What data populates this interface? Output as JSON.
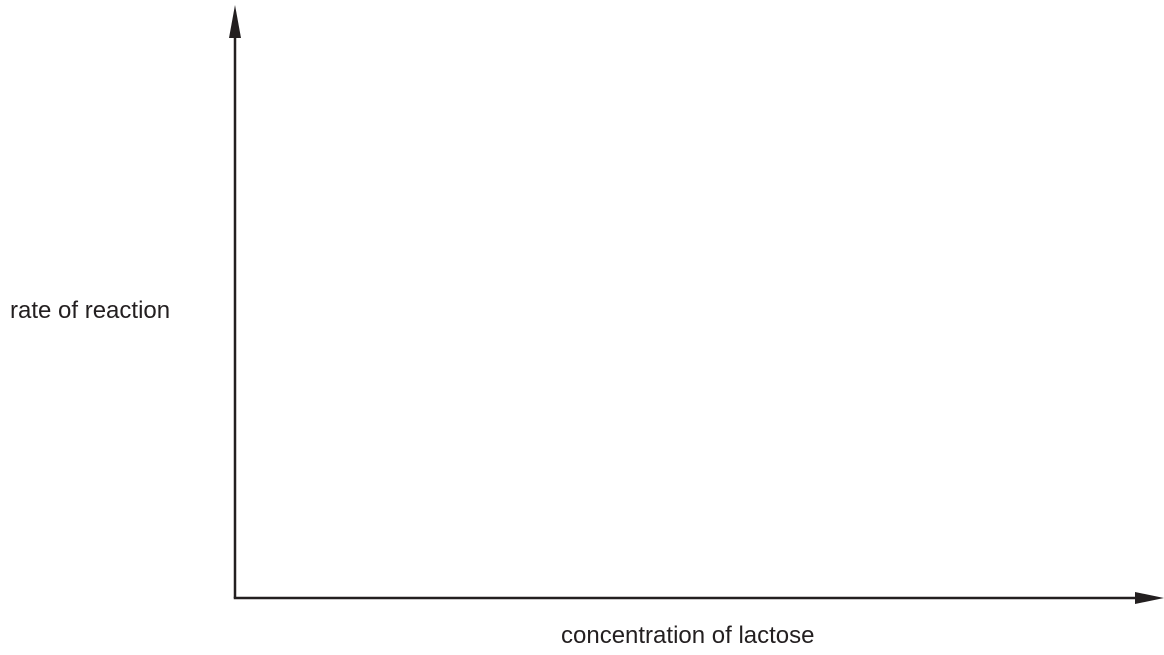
{
  "chart_data": {
    "type": "line",
    "title": "",
    "xlabel": "concentration of lactose",
    "ylabel": "rate of reaction",
    "series": [],
    "grid": false,
    "legend": "none",
    "axis_color": "#231f20"
  }
}
